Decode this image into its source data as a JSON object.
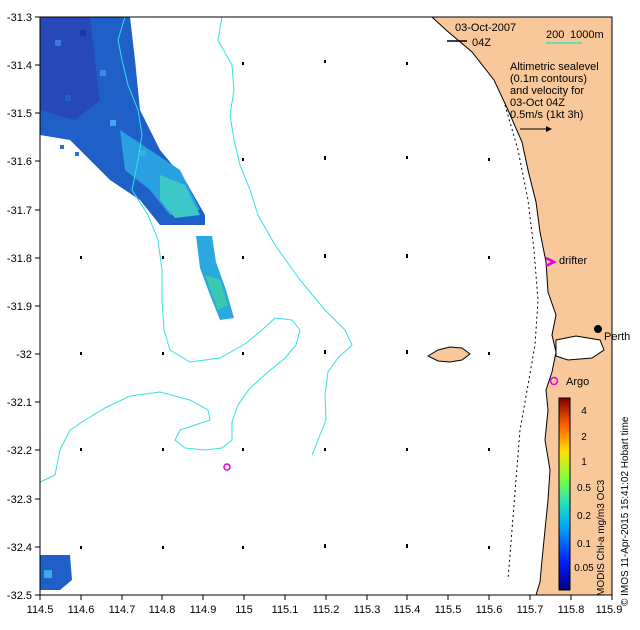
{
  "map": {
    "date": "03-Oct-2007",
    "time": "04Z",
    "depth_legend": {
      "label_200": "200",
      "label_1000": "1000m"
    },
    "description_lines": [
      "Altimetric sealevel",
      "(0.1m contours)",
      "and velocity for",
      "03-Oct 04Z",
      "0.5m/s (1kt 3h)"
    ],
    "labels": {
      "drifter": "drifter",
      "argo": "Argo",
      "perth": "Perth"
    },
    "x_ticks": [
      "114.5",
      "114.6",
      "114.7",
      "114.8",
      "114.9",
      "115",
      "115.1",
      "115.2",
      "115.3",
      "115.4",
      "115.5",
      "115.6",
      "115.7",
      "115.8",
      "115.9"
    ],
    "y_ticks": [
      "-31.3",
      "-31.4",
      "-31.5",
      "-31.6",
      "-31.7",
      "-31.8",
      "-31.9",
      "-32",
      "-32.1",
      "-32.2",
      "-32.3",
      "-32.4",
      "-32.5"
    ],
    "colorbar": {
      "title": "MODIS Chl-a mg/m3 OC3",
      "ticks": [
        "4",
        "2",
        "1",
        "0.5",
        "0.2",
        "0.1",
        "0.05"
      ]
    },
    "credit": "© IMOS 11-Apr-2015 15:41:02 Hobart time",
    "colors": {
      "land": "#f8c89a",
      "contour": "#33e0e8",
      "marker": "#e000e0",
      "depth_200": "#000000",
      "depth_1000": "#33e0c8"
    }
  }
}
